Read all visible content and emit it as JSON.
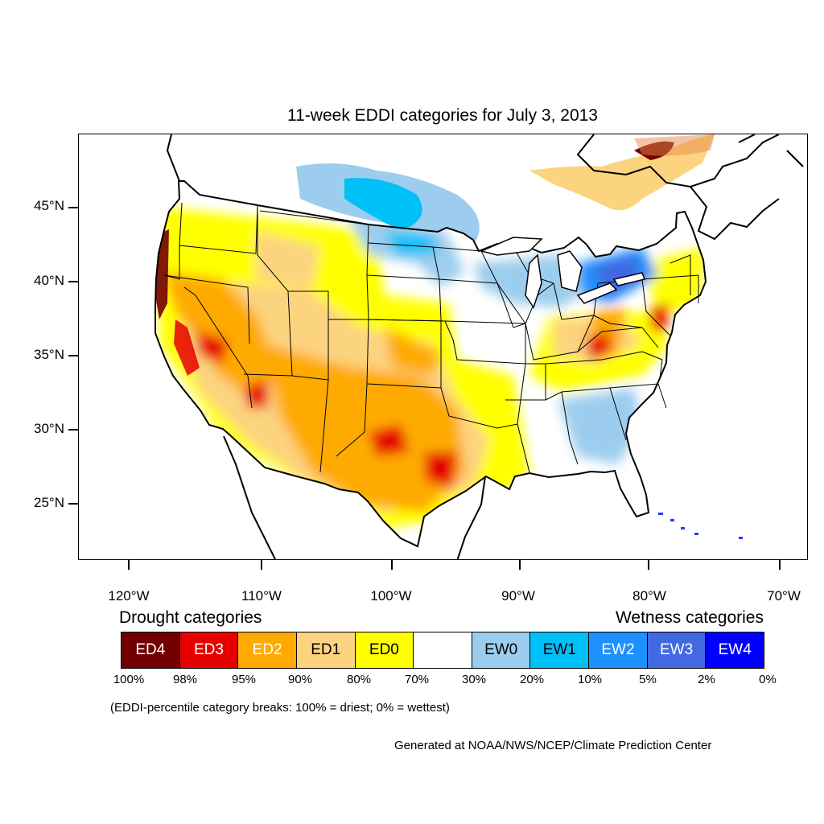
{
  "title": "11-week EDDI categories for July 3, 2013",
  "map": {
    "lat_labels": [
      "45°N",
      "40°N",
      "35°N",
      "30°N",
      "25°N"
    ],
    "lon_labels": [
      "120°W",
      "110°W",
      "100°W",
      "90°W",
      "80°W",
      "70°W"
    ],
    "extent": {
      "lon_min": "-124.2",
      "lon_max": "-68.5",
      "lat_min": "21",
      "lat_max": "49.5"
    }
  },
  "legend": {
    "drought_heading": "Drought categories",
    "wetness_heading": "Wetness categories",
    "categories": [
      {
        "label": "ED4",
        "color": "#730000",
        "text_color": "#ffffff"
      },
      {
        "label": "ED3",
        "color": "#e60000",
        "text_color": "#ffffff"
      },
      {
        "label": "ED2",
        "color": "#ffaa00",
        "text_color": "#ffffff"
      },
      {
        "label": "ED1",
        "color": "#fcd37f",
        "text_color": "#000000"
      },
      {
        "label": "ED0",
        "color": "#ffff00",
        "text_color": "#000000"
      },
      {
        "label": "",
        "color": "#ffffff",
        "text_color": "#000000"
      },
      {
        "label": "EW0",
        "color": "#9dcdee",
        "text_color": "#000000"
      },
      {
        "label": "EW1",
        "color": "#00c0f8",
        "text_color": "#000000"
      },
      {
        "label": "EW2",
        "color": "#1e90ff",
        "text_color": "#ffffff"
      },
      {
        "label": "EW3",
        "color": "#4169e1",
        "text_color": "#ffffff"
      },
      {
        "label": "EW4",
        "color": "#0000ff",
        "text_color": "#ffffff"
      }
    ],
    "breaks": [
      "100%",
      "98%",
      "95%",
      "90%",
      "80%",
      "70%",
      "30%",
      "20%",
      "10%",
      "5%",
      "2%",
      "0%"
    ],
    "note": "(EDDI-percentile category breaks: 100% = driest; 0% = wettest)"
  },
  "credit": "Generated at NOAA/NWS/NCEP/Climate Prediction Center"
}
